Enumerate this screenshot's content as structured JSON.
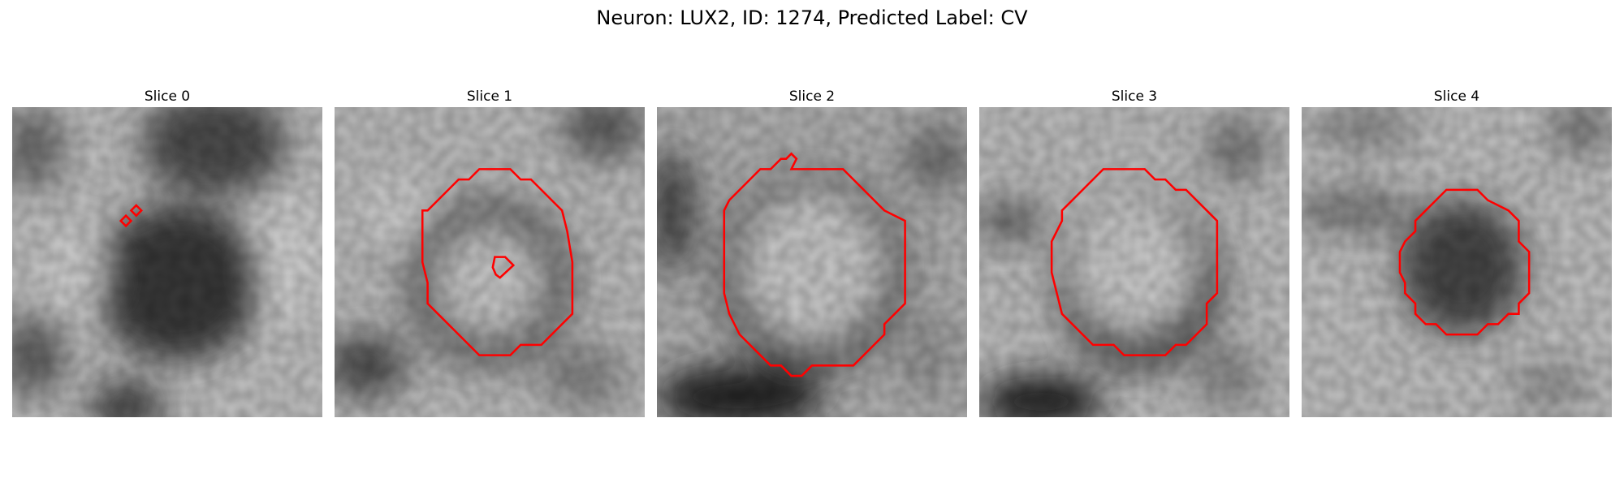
{
  "figure": {
    "title": "Neuron: LUX2, ID: 1274, Predicted Label: CV"
  },
  "contour_color": "#ff0000",
  "panels": [
    {
      "title": "Slice 0"
    },
    {
      "title": "Slice 1"
    },
    {
      "title": "Slice 2"
    },
    {
      "title": "Slice 3"
    },
    {
      "title": "Slice 4"
    }
  ]
}
